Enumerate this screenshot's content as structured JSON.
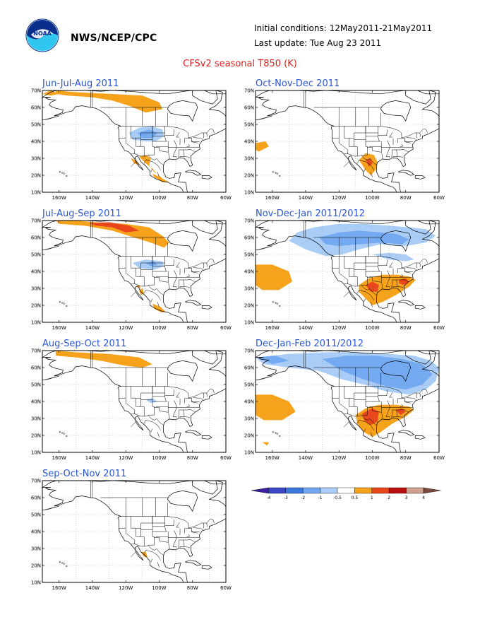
{
  "header": {
    "agency": "NWS/NCEP/CPC",
    "initial_conditions": "Initial conditions: 12May2011-21May2011",
    "last_update": "Last update: Tue Aug 23 2011",
    "title": "CFSv2 seasonal T850 (K)",
    "logo_icon": "noaa-logo-icon"
  },
  "axes": {
    "lat_labels": [
      "70N",
      "60N",
      "50N",
      "40N",
      "30N",
      "20N",
      "10N"
    ],
    "lon_labels": [
      "160W",
      "140W",
      "120W",
      "100W",
      "80W",
      "60W"
    ]
  },
  "panels": [
    {
      "title": "Jun-Jul-Aug 2011"
    },
    {
      "title": "Oct-Nov-Dec 2011"
    },
    {
      "title": "Jul-Aug-Sep 2011"
    },
    {
      "title": "Nov-Dec-Jan 2011/2012"
    },
    {
      "title": "Aug-Sep-Oct 2011"
    },
    {
      "title": "Dec-Jan-Feb 2011/2012"
    },
    {
      "title": "Sep-Oct-Nov 2011"
    }
  ],
  "colorbar": {
    "labels": [
      "-4",
      "-3",
      "-2",
      "-1",
      "-0.5",
      "0.5",
      "1",
      "2",
      "3",
      "4"
    ],
    "colors": [
      "#3a1fa3",
      "#3c46c9",
      "#3d79dd",
      "#74aaf2",
      "#a9cdf7",
      "#ffffff",
      "#f7a21b",
      "#e8471c",
      "#b80f10",
      "#cfa08f",
      "#7a4a3a"
    ]
  },
  "anomaly_colors": {
    "warm_05_1": "#f7a21b",
    "warm_1_2": "#e8471c",
    "cold_05_1": "#a9cdf7",
    "cold_1_2": "#74aaf2"
  }
}
